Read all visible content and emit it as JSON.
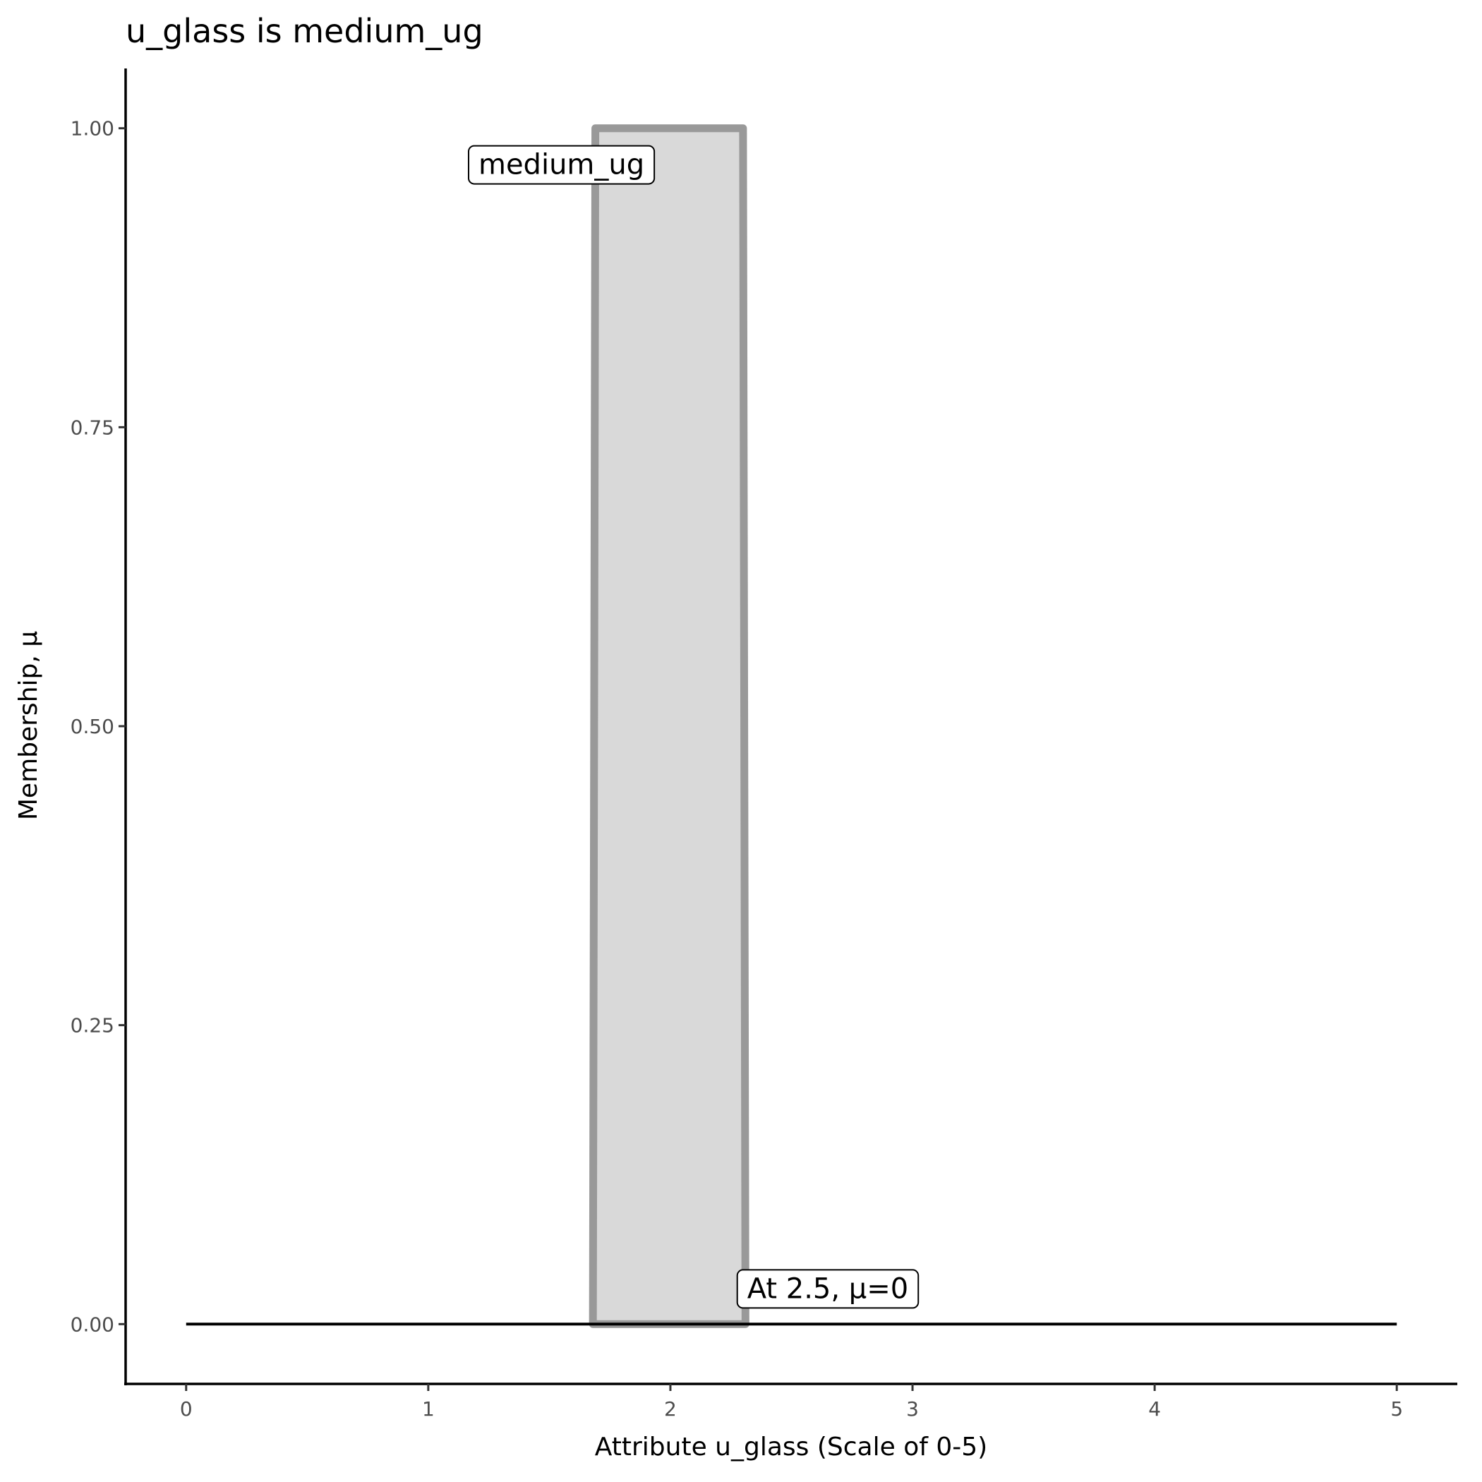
{
  "chart_data": {
    "type": "area",
    "title": "u_glass is medium_ug",
    "xlabel": "Attribute u_glass (Scale of 0-5)",
    "ylabel": "Membership, μ",
    "xlim": [
      -0.25,
      5.25
    ],
    "ylim": [
      -0.05,
      1.05
    ],
    "xticks": [
      "0",
      "1",
      "2",
      "3",
      "4",
      "5"
    ],
    "yticks": [
      "0.00",
      "0.25",
      "0.50",
      "0.75",
      "1.00"
    ],
    "grid": false,
    "series": [
      {
        "fill": "#d9d9d9",
        "stroke": "#999999",
        "x": [
          1.68,
          1.69,
          2.3,
          2.31
        ],
        "y": [
          0,
          1,
          1,
          0
        ]
      },
      {
        "stroke": "#000000",
        "x": [
          0,
          5
        ],
        "y": [
          0,
          0
        ]
      }
    ],
    "annotations": [
      {
        "text": "medium_ug",
        "x": 1.55,
        "y": 0.97
      },
      {
        "text": "At 2.5, μ=0",
        "x": 2.65,
        "y": 0.03
      }
    ]
  }
}
